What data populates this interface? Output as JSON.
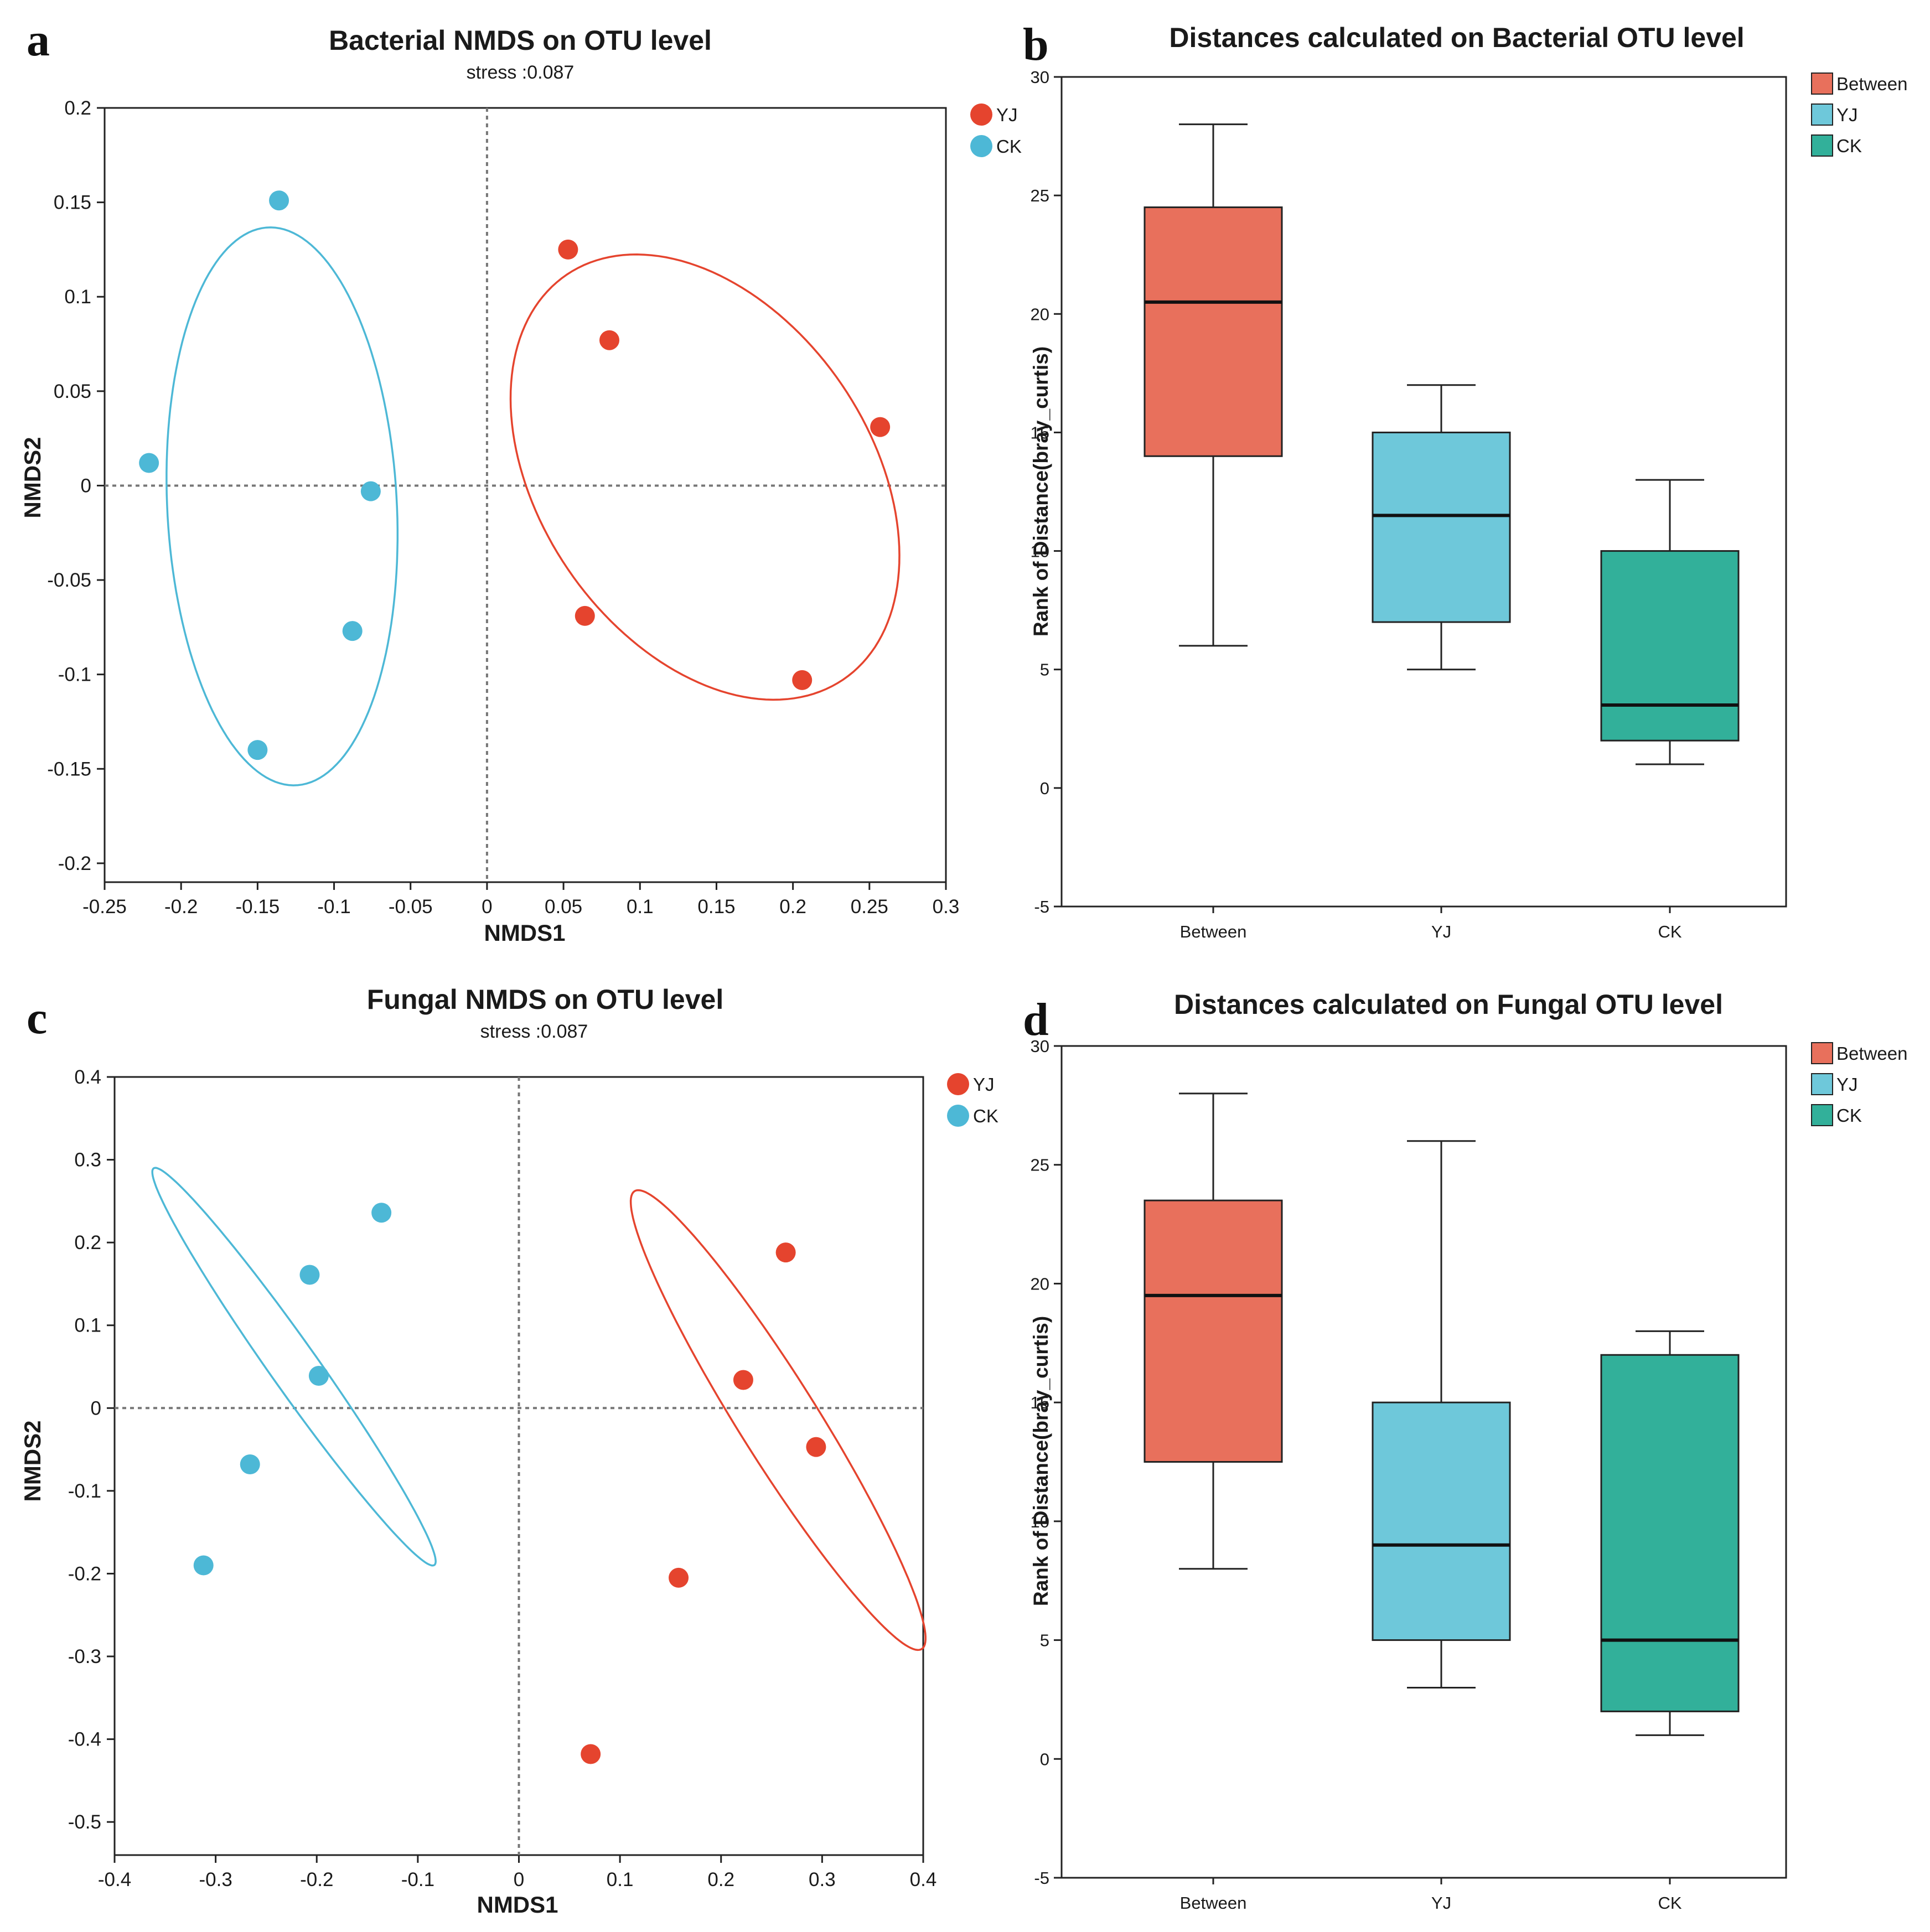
{
  "colors": {
    "YJ": "#e5442e",
    "CK": "#4db8d6",
    "Between_box": "#e8705c",
    "YJ_box": "#6ec8da",
    "CK_box": "#32b09a"
  },
  "chart_data": [
    {
      "type": "scatter",
      "panel": "a",
      "title": "Bacterial NMDS on OTU level",
      "subtitle": "stress :0.087",
      "xlabel": "NMDS1",
      "ylabel": "NMDS2",
      "xlim": [
        -0.25,
        0.3
      ],
      "ylim": [
        -0.21,
        0.2
      ],
      "xticks": [
        -0.25,
        -0.2,
        -0.15,
        -0.1,
        -0.05,
        0,
        0.05,
        0.1,
        0.15,
        0.2,
        0.25,
        0.3
      ],
      "xtick_labels": [
        "-0.25",
        "-0.2",
        "-0.15",
        "-0.1",
        "-0.05",
        "0",
        "0.05",
        "0.1",
        "0.15",
        "0.2",
        "0.25",
        "0.3"
      ],
      "yticks": [
        0.2,
        0.15,
        0.1,
        0.05,
        0,
        -0.05,
        -0.1,
        -0.15,
        -0.2
      ],
      "ytick_labels": [
        "0.2",
        "0.15",
        "0.1",
        "0.05",
        "0",
        "-0.05",
        "-0.1",
        "-0.15",
        "-0.2"
      ],
      "legend": [
        "YJ",
        "CK"
      ],
      "series": [
        {
          "name": "YJ",
          "points": [
            [
              0.053,
              0.125
            ],
            [
              0.08,
              0.077
            ],
            [
              0.257,
              0.031
            ],
            [
              0.064,
              -0.069
            ],
            [
              0.206,
              -0.103
            ]
          ],
          "ellipse": {
            "cx": 0.1425,
            "cy": 0.0045,
            "rx": 0.143,
            "ry": 0.098,
            "angle_deg": -39
          }
        },
        {
          "name": "CK",
          "points": [
            [
              -0.136,
              0.151
            ],
            [
              -0.221,
              0.012
            ],
            [
              -0.076,
              -0.003
            ],
            [
              -0.088,
              -0.077
            ],
            [
              -0.15,
              -0.14
            ]
          ],
          "ellipse": {
            "cx": -0.134,
            "cy": -0.011,
            "rx": 0.075,
            "ry": 0.148,
            "angle_deg": 4
          }
        }
      ]
    },
    {
      "type": "box",
      "panel": "b",
      "title": "Distances calculated on Bacterial OTU level",
      "ylabel": "Rank of Distance(bray_curtis)",
      "ylim": [
        -5,
        30
      ],
      "yticks": [
        -5,
        0,
        5,
        10,
        15,
        20,
        25,
        30
      ],
      "ytick_labels": [
        "-5",
        "0",
        "5",
        "10",
        "15",
        "20",
        "25",
        "30"
      ],
      "categories": [
        "Between",
        "YJ",
        "CK"
      ],
      "legend": [
        "Between",
        "YJ",
        "CK"
      ],
      "boxes": [
        {
          "name": "Between",
          "min": 6,
          "q1": 14,
          "median": 20.5,
          "q3": 24.5,
          "max": 28
        },
        {
          "name": "YJ",
          "min": 5,
          "q1": 7,
          "median": 11.5,
          "q3": 15,
          "max": 17
        },
        {
          "name": "CK",
          "min": 1,
          "q1": 2,
          "median": 3.5,
          "q3": 10,
          "max": 13
        }
      ]
    },
    {
      "type": "scatter",
      "panel": "c",
      "title": "Fungal NMDS on OTU level",
      "subtitle": "stress :0.087",
      "xlabel": "NMDS1",
      "ylabel": "NMDS2",
      "xlim": [
        -0.4,
        0.4
      ],
      "ylim": [
        -0.54,
        0.4
      ],
      "xticks": [
        -0.4,
        -0.3,
        -0.2,
        -0.1,
        0,
        0.1,
        0.2,
        0.3,
        0.4
      ],
      "xtick_labels": [
        "-0.4",
        "-0.3",
        "-0.2",
        "-0.1",
        "0",
        "0.1",
        "0.2",
        "0.3",
        "0.4"
      ],
      "yticks": [
        0.4,
        0.3,
        0.2,
        0.1,
        0,
        -0.1,
        -0.2,
        -0.3,
        -0.4,
        -0.5
      ],
      "ytick_labels": [
        "0.4",
        "0.3",
        "0.2",
        "0.1",
        "0",
        "-0.1",
        "-0.2",
        "-0.3",
        "-0.4",
        "-0.5"
      ],
      "legend": [
        "YJ",
        "CK"
      ],
      "series": [
        {
          "name": "YJ",
          "points": [
            [
              0.264,
              0.188
            ],
            [
              0.222,
              0.034
            ],
            [
              0.294,
              -0.047
            ],
            [
              0.158,
              -0.205
            ],
            [
              0.071,
              -0.418
            ]
          ],
          "ellipse": {
            "cx": 0.2565,
            "cy": -0.0145,
            "rx": 0.311,
            "ry": 0.041,
            "angle_deg": -63
          }
        },
        {
          "name": "CK",
          "points": [
            [
              -0.136,
              0.236
            ],
            [
              -0.207,
              0.161
            ],
            [
              -0.198,
              0.039
            ],
            [
              -0.266,
              -0.068
            ],
            [
              -0.312,
              -0.19
            ]
          ],
          "ellipse": {
            "cx": -0.2225,
            "cy": 0.05,
            "rx": 0.277,
            "ry": 0.025,
            "angle_deg": -60
          }
        }
      ]
    },
    {
      "type": "box",
      "panel": "d",
      "title": "Distances calculated on Fungal OTU level",
      "ylabel": "Rank of Distance(bray_curtis)",
      "ylim": [
        -5,
        30
      ],
      "yticks": [
        -5,
        0,
        5,
        10,
        15,
        20,
        25,
        30
      ],
      "ytick_labels": [
        "-5",
        "0",
        "5",
        "10",
        "15",
        "20",
        "25",
        "30"
      ],
      "categories": [
        "Between",
        "YJ",
        "CK"
      ],
      "legend": [
        "Between",
        "YJ",
        "CK"
      ],
      "boxes": [
        {
          "name": "Between",
          "min": 8,
          "q1": 12.5,
          "median": 19.5,
          "q3": 23.5,
          "max": 28
        },
        {
          "name": "YJ",
          "min": 3,
          "q1": 5,
          "median": 9,
          "q3": 15,
          "max": 26
        },
        {
          "name": "CK",
          "min": 1,
          "q1": 2,
          "median": 5,
          "q3": 17,
          "max": 18
        }
      ]
    }
  ]
}
